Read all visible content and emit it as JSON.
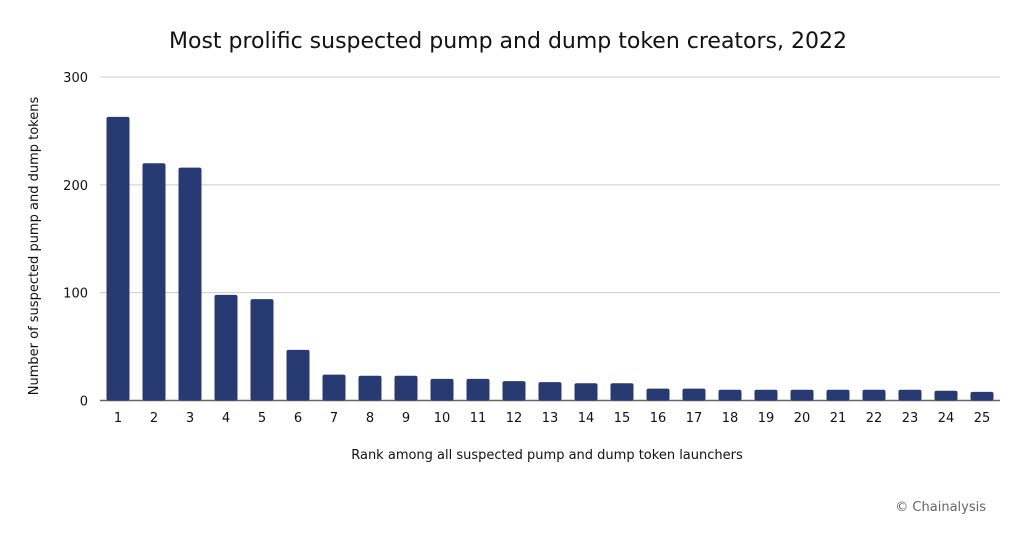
{
  "chart_data": {
    "type": "bar",
    "title": "Most prolific suspected pump and dump token creators, 2022",
    "xlabel": "Rank among all suspected pump and dump token launchers",
    "ylabel": "Number of suspected pump and dump tokens",
    "ylim": [
      0,
      300
    ],
    "yticks": [
      0,
      100,
      200,
      300
    ],
    "grid": true,
    "categories": [
      "1",
      "2",
      "3",
      "4",
      "5",
      "6",
      "7",
      "8",
      "9",
      "10",
      "11",
      "12",
      "13",
      "14",
      "15",
      "16",
      "17",
      "18",
      "19",
      "20",
      "21",
      "22",
      "23",
      "24",
      "25"
    ],
    "values": [
      263,
      220,
      216,
      98,
      94,
      47,
      24,
      23,
      23,
      20,
      20,
      18,
      17,
      16,
      16,
      11,
      11,
      10,
      10,
      10,
      10,
      10,
      10,
      9,
      8
    ],
    "bar_color": "#283a72"
  },
  "credit": "© Chainalysis"
}
